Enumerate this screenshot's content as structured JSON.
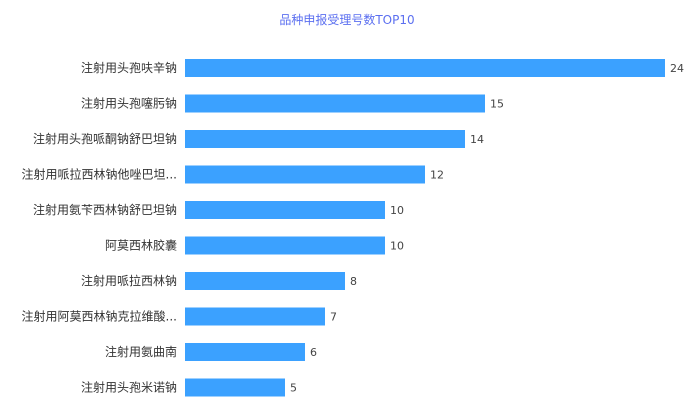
{
  "chart_data": {
    "type": "bar",
    "orientation": "horizontal",
    "title": "品种申报受理号数TOP10",
    "categories": [
      "注射用头孢呋辛钠",
      "注射用头孢噻肟钠",
      "注射用头孢哌酮钠舒巴坦钠",
      "注射用哌拉西林钠他唑巴坦...",
      "注射用氨苄西林钠舒巴坦钠",
      "阿莫西林胶囊",
      "注射用哌拉西林钠",
      "注射用阿莫西林钠克拉维酸...",
      "注射用氨曲南",
      "注射用头孢米诺钠"
    ],
    "values": [
      24,
      15,
      14,
      12,
      10,
      10,
      8,
      7,
      6,
      5
    ],
    "xlim": [
      0,
      24
    ],
    "grid": false,
    "data_labels": true,
    "colors": {
      "bar": "#3ba1ff",
      "title": "#5b6ff0"
    }
  }
}
